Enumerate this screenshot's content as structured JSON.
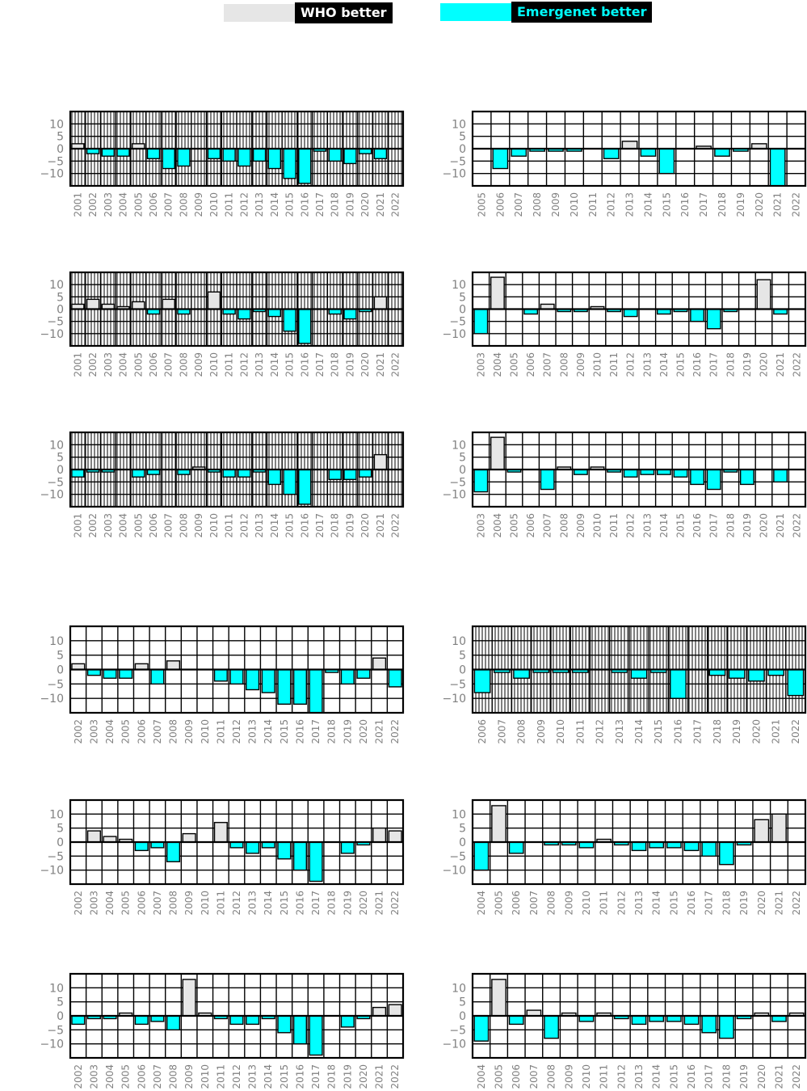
{
  "legend": {
    "who_label": "WHO better",
    "emergenet_label": "Emergenet better"
  },
  "colors": {
    "who": "#e6e6e6",
    "emergenet": "#00ffff",
    "hatch": "#000000",
    "axis_tick": "#808080"
  },
  "chart_data": [
    {
      "type": "bar",
      "title": "",
      "xlabel": "",
      "ylabel": "",
      "ylim": [
        -15,
        15
      ],
      "yticks": [
        10,
        5,
        0,
        -5,
        -10
      ],
      "hatched": true,
      "categories": [
        "2001",
        "2002",
        "2003",
        "2004",
        "2005",
        "2006",
        "2007",
        "2008",
        "2009",
        "2010",
        "2011",
        "2012",
        "2013",
        "2014",
        "2015",
        "2016",
        "2017",
        "2018",
        "2019",
        "2020",
        "2021",
        "2022"
      ],
      "values": [
        2,
        -2,
        -3,
        -3,
        2,
        -4,
        -8,
        -7,
        0,
        -4,
        -5,
        -7,
        -5,
        -8,
        -12,
        -14,
        -1,
        -5,
        -6,
        -2,
        -4,
        0
      ]
    },
    {
      "type": "bar",
      "title": "",
      "xlabel": "",
      "ylabel": "",
      "ylim": [
        -15,
        15
      ],
      "yticks": [
        10,
        5,
        0,
        -5,
        -10
      ],
      "hatched": false,
      "categories": [
        "2005",
        "2006",
        "2007",
        "2008",
        "2009",
        "2010",
        "2011",
        "2012",
        "2013",
        "2014",
        "2015",
        "2016",
        "2017",
        "2018",
        "2019",
        "2020",
        "2021",
        "2022"
      ],
      "values": [
        0,
        -8,
        -3,
        -1,
        -1,
        -1,
        0,
        -4,
        3,
        -3,
        -10,
        0,
        1,
        -3,
        -1,
        2,
        -15,
        0
      ]
    },
    {
      "type": "bar",
      "title": "",
      "xlabel": "",
      "ylabel": "",
      "ylim": [
        -15,
        15
      ],
      "yticks": [
        10,
        5,
        0,
        -5,
        -10
      ],
      "hatched": true,
      "categories": [
        "2001",
        "2002",
        "2003",
        "2004",
        "2005",
        "2006",
        "2007",
        "2008",
        "2009",
        "2010",
        "2011",
        "2012",
        "2013",
        "2014",
        "2015",
        "2016",
        "2017",
        "2018",
        "2019",
        "2020",
        "2021",
        "2022"
      ],
      "values": [
        2,
        4,
        2,
        1,
        3,
        -2,
        4,
        -2,
        0,
        7,
        -2,
        -4,
        -1,
        -3,
        -9,
        -14,
        0,
        -2,
        -4,
        -1,
        5,
        0
      ]
    },
    {
      "type": "bar",
      "title": "",
      "xlabel": "",
      "ylabel": "",
      "ylim": [
        -15,
        15
      ],
      "yticks": [
        10,
        5,
        0,
        -5,
        -10
      ],
      "hatched": false,
      "categories": [
        "2003",
        "2004",
        "2005",
        "2006",
        "2007",
        "2008",
        "2009",
        "2010",
        "2011",
        "2012",
        "2013",
        "2014",
        "2015",
        "2016",
        "2017",
        "2018",
        "2019",
        "2020",
        "2021",
        "2022"
      ],
      "values": [
        -10,
        13,
        0,
        -2,
        2,
        -1,
        -1,
        1,
        -1,
        -3,
        0,
        -2,
        -1,
        -5,
        -8,
        -1,
        0,
        12,
        -2,
        0
      ]
    },
    {
      "type": "bar",
      "title": "",
      "xlabel": "",
      "ylabel": "",
      "ylim": [
        -15,
        15
      ],
      "yticks": [
        10,
        5,
        0,
        -5,
        -10
      ],
      "hatched": true,
      "categories": [
        "2001",
        "2002",
        "2003",
        "2004",
        "2005",
        "2006",
        "2007",
        "2008",
        "2009",
        "2010",
        "2011",
        "2012",
        "2013",
        "2014",
        "2015",
        "2016",
        "2017",
        "2018",
        "2019",
        "2020",
        "2021",
        "2022"
      ],
      "values": [
        -3,
        -1,
        -1,
        0,
        -3,
        -2,
        0,
        -2,
        1,
        -1,
        -3,
        -3,
        -1,
        -6,
        -10,
        -14,
        0,
        -4,
        -4,
        -3,
        6,
        0
      ]
    },
    {
      "type": "bar",
      "title": "",
      "xlabel": "",
      "ylabel": "",
      "ylim": [
        -15,
        15
      ],
      "yticks": [
        10,
        5,
        0,
        -5,
        -10
      ],
      "hatched": false,
      "categories": [
        "2003",
        "2004",
        "2005",
        "2006",
        "2007",
        "2008",
        "2009",
        "2010",
        "2011",
        "2012",
        "2013",
        "2014",
        "2015",
        "2016",
        "2017",
        "2018",
        "2019",
        "2020",
        "2021",
        "2022"
      ],
      "values": [
        -9,
        13,
        -1,
        0,
        -8,
        1,
        -2,
        1,
        -1,
        -3,
        -2,
        -2,
        -3,
        -6,
        -8,
        -1,
        -6,
        0,
        -5,
        0
      ]
    },
    {
      "type": "bar",
      "title": "",
      "xlabel": "",
      "ylabel": "",
      "ylim": [
        -15,
        15
      ],
      "yticks": [
        10,
        5,
        0,
        -5,
        -10
      ],
      "hatched": false,
      "categories": [
        "2002",
        "2003",
        "2004",
        "2005",
        "2006",
        "2007",
        "2008",
        "2009",
        "2010",
        "2011",
        "2012",
        "2013",
        "2014",
        "2015",
        "2016",
        "2017",
        "2018",
        "2019",
        "2020",
        "2021",
        "2022"
      ],
      "values": [
        2,
        -2,
        -3,
        -3,
        2,
        -5,
        3,
        0,
        0,
        -4,
        -5,
        -7,
        -8,
        -12,
        -12,
        -15,
        -1,
        -5,
        -3,
        4,
        -6
      ]
    },
    {
      "type": "bar",
      "title": "",
      "xlabel": "",
      "ylabel": "",
      "ylim": [
        -15,
        15
      ],
      "yticks": [
        10,
        5,
        0,
        -5,
        -10
      ],
      "hatched": true,
      "categories": [
        "2006",
        "2007",
        "2008",
        "2009",
        "2010",
        "2011",
        "2012",
        "2013",
        "2014",
        "2015",
        "2016",
        "2017",
        "2018",
        "2019",
        "2020",
        "2021",
        "2022"
      ],
      "values": [
        -8,
        -1,
        -3,
        -1,
        -1,
        -1,
        0,
        -1,
        -3,
        -1,
        -10,
        0,
        -2,
        -3,
        -4,
        -2,
        -9
      ]
    },
    {
      "type": "bar",
      "title": "",
      "xlabel": "",
      "ylabel": "",
      "ylim": [
        -15,
        15
      ],
      "yticks": [
        10,
        5,
        0,
        -5,
        -10
      ],
      "hatched": false,
      "categories": [
        "2002",
        "2003",
        "2004",
        "2005",
        "2006",
        "2007",
        "2008",
        "2009",
        "2010",
        "2011",
        "2012",
        "2013",
        "2014",
        "2015",
        "2016",
        "2017",
        "2018",
        "2019",
        "2020",
        "2021",
        "2022"
      ],
      "values": [
        0,
        4,
        2,
        1,
        -3,
        -2,
        -7,
        3,
        0,
        7,
        -2,
        -4,
        -2,
        -6,
        -10,
        -14,
        0,
        -4,
        -1,
        5,
        4
      ]
    },
    {
      "type": "bar",
      "title": "",
      "xlabel": "",
      "ylabel": "",
      "ylim": [
        -15,
        15
      ],
      "yticks": [
        10,
        5,
        0,
        -5,
        -10
      ],
      "hatched": false,
      "categories": [
        "2004",
        "2005",
        "2006",
        "2007",
        "2008",
        "2009",
        "2010",
        "2011",
        "2012",
        "2013",
        "2014",
        "2015",
        "2016",
        "2017",
        "2018",
        "2019",
        "2020",
        "2021",
        "2022"
      ],
      "values": [
        -10,
        13,
        -4,
        0,
        -1,
        -1,
        -2,
        1,
        -1,
        -3,
        -2,
        -2,
        -3,
        -5,
        -8,
        -1,
        8,
        10,
        0
      ]
    },
    {
      "type": "bar",
      "title": "",
      "xlabel": "",
      "ylabel": "",
      "ylim": [
        -15,
        15
      ],
      "yticks": [
        10,
        5,
        0,
        -5,
        -10
      ],
      "hatched": false,
      "categories": [
        "2002",
        "2003",
        "2004",
        "2005",
        "2006",
        "2007",
        "2008",
        "2009",
        "2010",
        "2011",
        "2012",
        "2013",
        "2014",
        "2015",
        "2016",
        "2017",
        "2018",
        "2019",
        "2020",
        "2021",
        "2022"
      ],
      "values": [
        -3,
        -1,
        -1,
        1,
        -3,
        -2,
        -5,
        13,
        1,
        -1,
        -3,
        -3,
        -1,
        -6,
        -10,
        -14,
        0,
        -4,
        -1,
        3,
        4
      ]
    },
    {
      "type": "bar",
      "title": "",
      "xlabel": "",
      "ylabel": "",
      "ylim": [
        -15,
        15
      ],
      "yticks": [
        10,
        5,
        0,
        -5,
        -10
      ],
      "hatched": false,
      "categories": [
        "2004",
        "2005",
        "2006",
        "2007",
        "2008",
        "2009",
        "2010",
        "2011",
        "2012",
        "2013",
        "2014",
        "2015",
        "2016",
        "2017",
        "2018",
        "2019",
        "2020",
        "2021",
        "2022"
      ],
      "values": [
        -9,
        13,
        -3,
        2,
        -8,
        1,
        -2,
        1,
        -1,
        -3,
        -2,
        -2,
        -3,
        -6,
        -8,
        -1,
        1,
        -2,
        1
      ]
    }
  ]
}
